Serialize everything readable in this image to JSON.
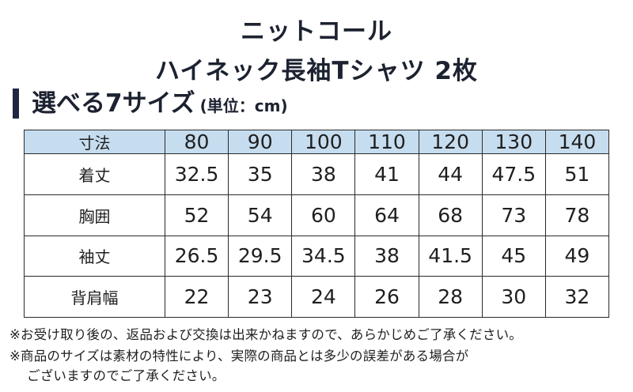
{
  "header": {
    "brand": "ニットコール",
    "product": "ハイネック長袖Tシャツ 2枚"
  },
  "section": {
    "title": "選べる7サイズ",
    "unit": "(単位：cm)"
  },
  "size_table": {
    "corner_label": "寸法",
    "sizes": [
      "80",
      "90",
      "100",
      "110",
      "120",
      "130",
      "140"
    ],
    "rows": [
      {
        "label": "着丈",
        "values": [
          "32.5",
          "35",
          "38",
          "41",
          "44",
          "47.5",
          "51"
        ]
      },
      {
        "label": "胸囲",
        "values": [
          "52",
          "54",
          "60",
          "64",
          "68",
          "73",
          "78"
        ]
      },
      {
        "label": "袖丈",
        "values": [
          "26.5",
          "29.5",
          "34.5",
          "38",
          "41.5",
          "45",
          "49"
        ]
      },
      {
        "label": "背肩幅",
        "values": [
          "22",
          "23",
          "24",
          "26",
          "28",
          "30",
          "32"
        ]
      }
    ]
  },
  "notes": [
    "※お受け取り後の、返品および交換は出来かねますので、あらかじめご了承ください。",
    "※商品のサイズは素材の特性により、実際の商品とは多少の誤差がある場合が",
    "ございますのでご了承ください。"
  ],
  "colors": {
    "header_fill": "#c6ddef",
    "section_bar": "#1f2740"
  }
}
